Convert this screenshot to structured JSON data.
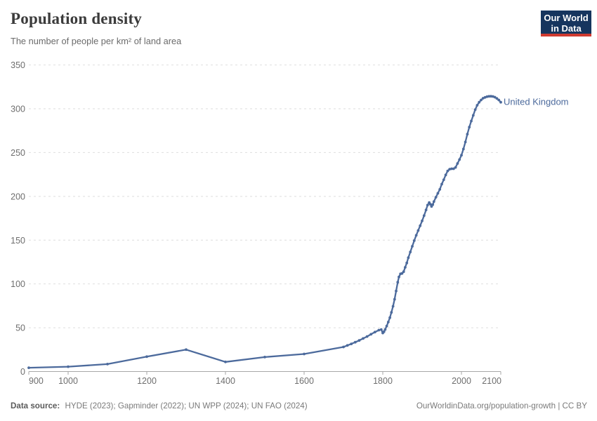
{
  "header": {
    "title": "Population density",
    "subtitle": "The number of people per km² of land area"
  },
  "logo": {
    "line1": "Our World",
    "line2": "in Data",
    "bg_color": "#16355e",
    "stripe_color": "#cf3a30"
  },
  "footer": {
    "source_label": "Data source:",
    "source_text": "HYDE (2023); Gapminder (2022); UN WPP (2024); UN FAO (2024)",
    "link": "OurWorldinData.org/population-growth | CC BY"
  },
  "chart_data": {
    "type": "line",
    "title": "Population density",
    "subtitle": "The number of people per km² of land area",
    "xlabel": "",
    "ylabel": "",
    "xlim": [
      900,
      2100
    ],
    "ylim": [
      0,
      350
    ],
    "x_ticks": [
      900,
      1000,
      1200,
      1400,
      1600,
      1800,
      2000,
      2100
    ],
    "y_ticks": [
      0,
      50,
      100,
      150,
      200,
      250,
      300,
      350
    ],
    "grid": "horizontal-dashed",
    "legend_position": "end-of-line-label",
    "line_color": "#4c6a9c",
    "axis_color": "#a7a7a7",
    "grid_color": "#dedede",
    "series": [
      {
        "name": "United Kingdom",
        "color": "#4c6a9c",
        "points": [
          [
            900,
            4.3
          ],
          [
            1000,
            5.5
          ],
          [
            1100,
            8.5
          ],
          [
            1200,
            17
          ],
          [
            1300,
            25
          ],
          [
            1400,
            11
          ],
          [
            1500,
            16.5
          ],
          [
            1600,
            20
          ],
          [
            1700,
            28
          ],
          [
            1710,
            29.8
          ],
          [
            1720,
            31.6
          ],
          [
            1730,
            33.5
          ],
          [
            1740,
            35.5
          ],
          [
            1750,
            37.7
          ],
          [
            1760,
            40
          ],
          [
            1770,
            42.5
          ],
          [
            1780,
            45
          ],
          [
            1790,
            47.3
          ],
          [
            1796,
            48
          ],
          [
            1800,
            44
          ],
          [
            1803,
            45.5
          ],
          [
            1806,
            48
          ],
          [
            1810,
            52
          ],
          [
            1814,
            56.5
          ],
          [
            1818,
            61.5
          ],
          [
            1822,
            67.5
          ],
          [
            1826,
            74.5
          ],
          [
            1830,
            82.5
          ],
          [
            1834,
            92
          ],
          [
            1838,
            102
          ],
          [
            1841,
            108
          ],
          [
            1845,
            111.5
          ],
          [
            1849,
            112
          ],
          [
            1853,
            114
          ],
          [
            1857,
            119
          ],
          [
            1861,
            124
          ],
          [
            1865,
            130
          ],
          [
            1870,
            136.5
          ],
          [
            1875,
            143
          ],
          [
            1880,
            149.5
          ],
          [
            1885,
            155.5
          ],
          [
            1890,
            161
          ],
          [
            1895,
            166.5
          ],
          [
            1900,
            172
          ],
          [
            1905,
            178
          ],
          [
            1910,
            184.5
          ],
          [
            1914,
            190
          ],
          [
            1918,
            193
          ],
          [
            1921,
            191
          ],
          [
            1924,
            188.5
          ],
          [
            1927,
            190.5
          ],
          [
            1930,
            194
          ],
          [
            1935,
            199
          ],
          [
            1940,
            203.5
          ],
          [
            1945,
            208
          ],
          [
            1950,
            214
          ],
          [
            1955,
            219
          ],
          [
            1960,
            224.5
          ],
          [
            1965,
            229
          ],
          [
            1970,
            231
          ],
          [
            1975,
            231.5
          ],
          [
            1980,
            231.5
          ],
          [
            1985,
            233
          ],
          [
            1990,
            237.5
          ],
          [
            1995,
            242
          ],
          [
            2000,
            247
          ],
          [
            2005,
            254
          ],
          [
            2010,
            262
          ],
          [
            2015,
            271
          ],
          [
            2020,
            279
          ],
          [
            2025,
            286
          ],
          [
            2030,
            292.5
          ],
          [
            2035,
            299
          ],
          [
            2040,
            304
          ],
          [
            2045,
            307.5
          ],
          [
            2050,
            310
          ],
          [
            2055,
            312
          ],
          [
            2060,
            313
          ],
          [
            2065,
            313.8
          ],
          [
            2070,
            314.2
          ],
          [
            2075,
            314.3
          ],
          [
            2080,
            314
          ],
          [
            2085,
            313.2
          ],
          [
            2090,
            311.8
          ],
          [
            2095,
            310
          ],
          [
            2100,
            307.5
          ]
        ]
      }
    ]
  }
}
